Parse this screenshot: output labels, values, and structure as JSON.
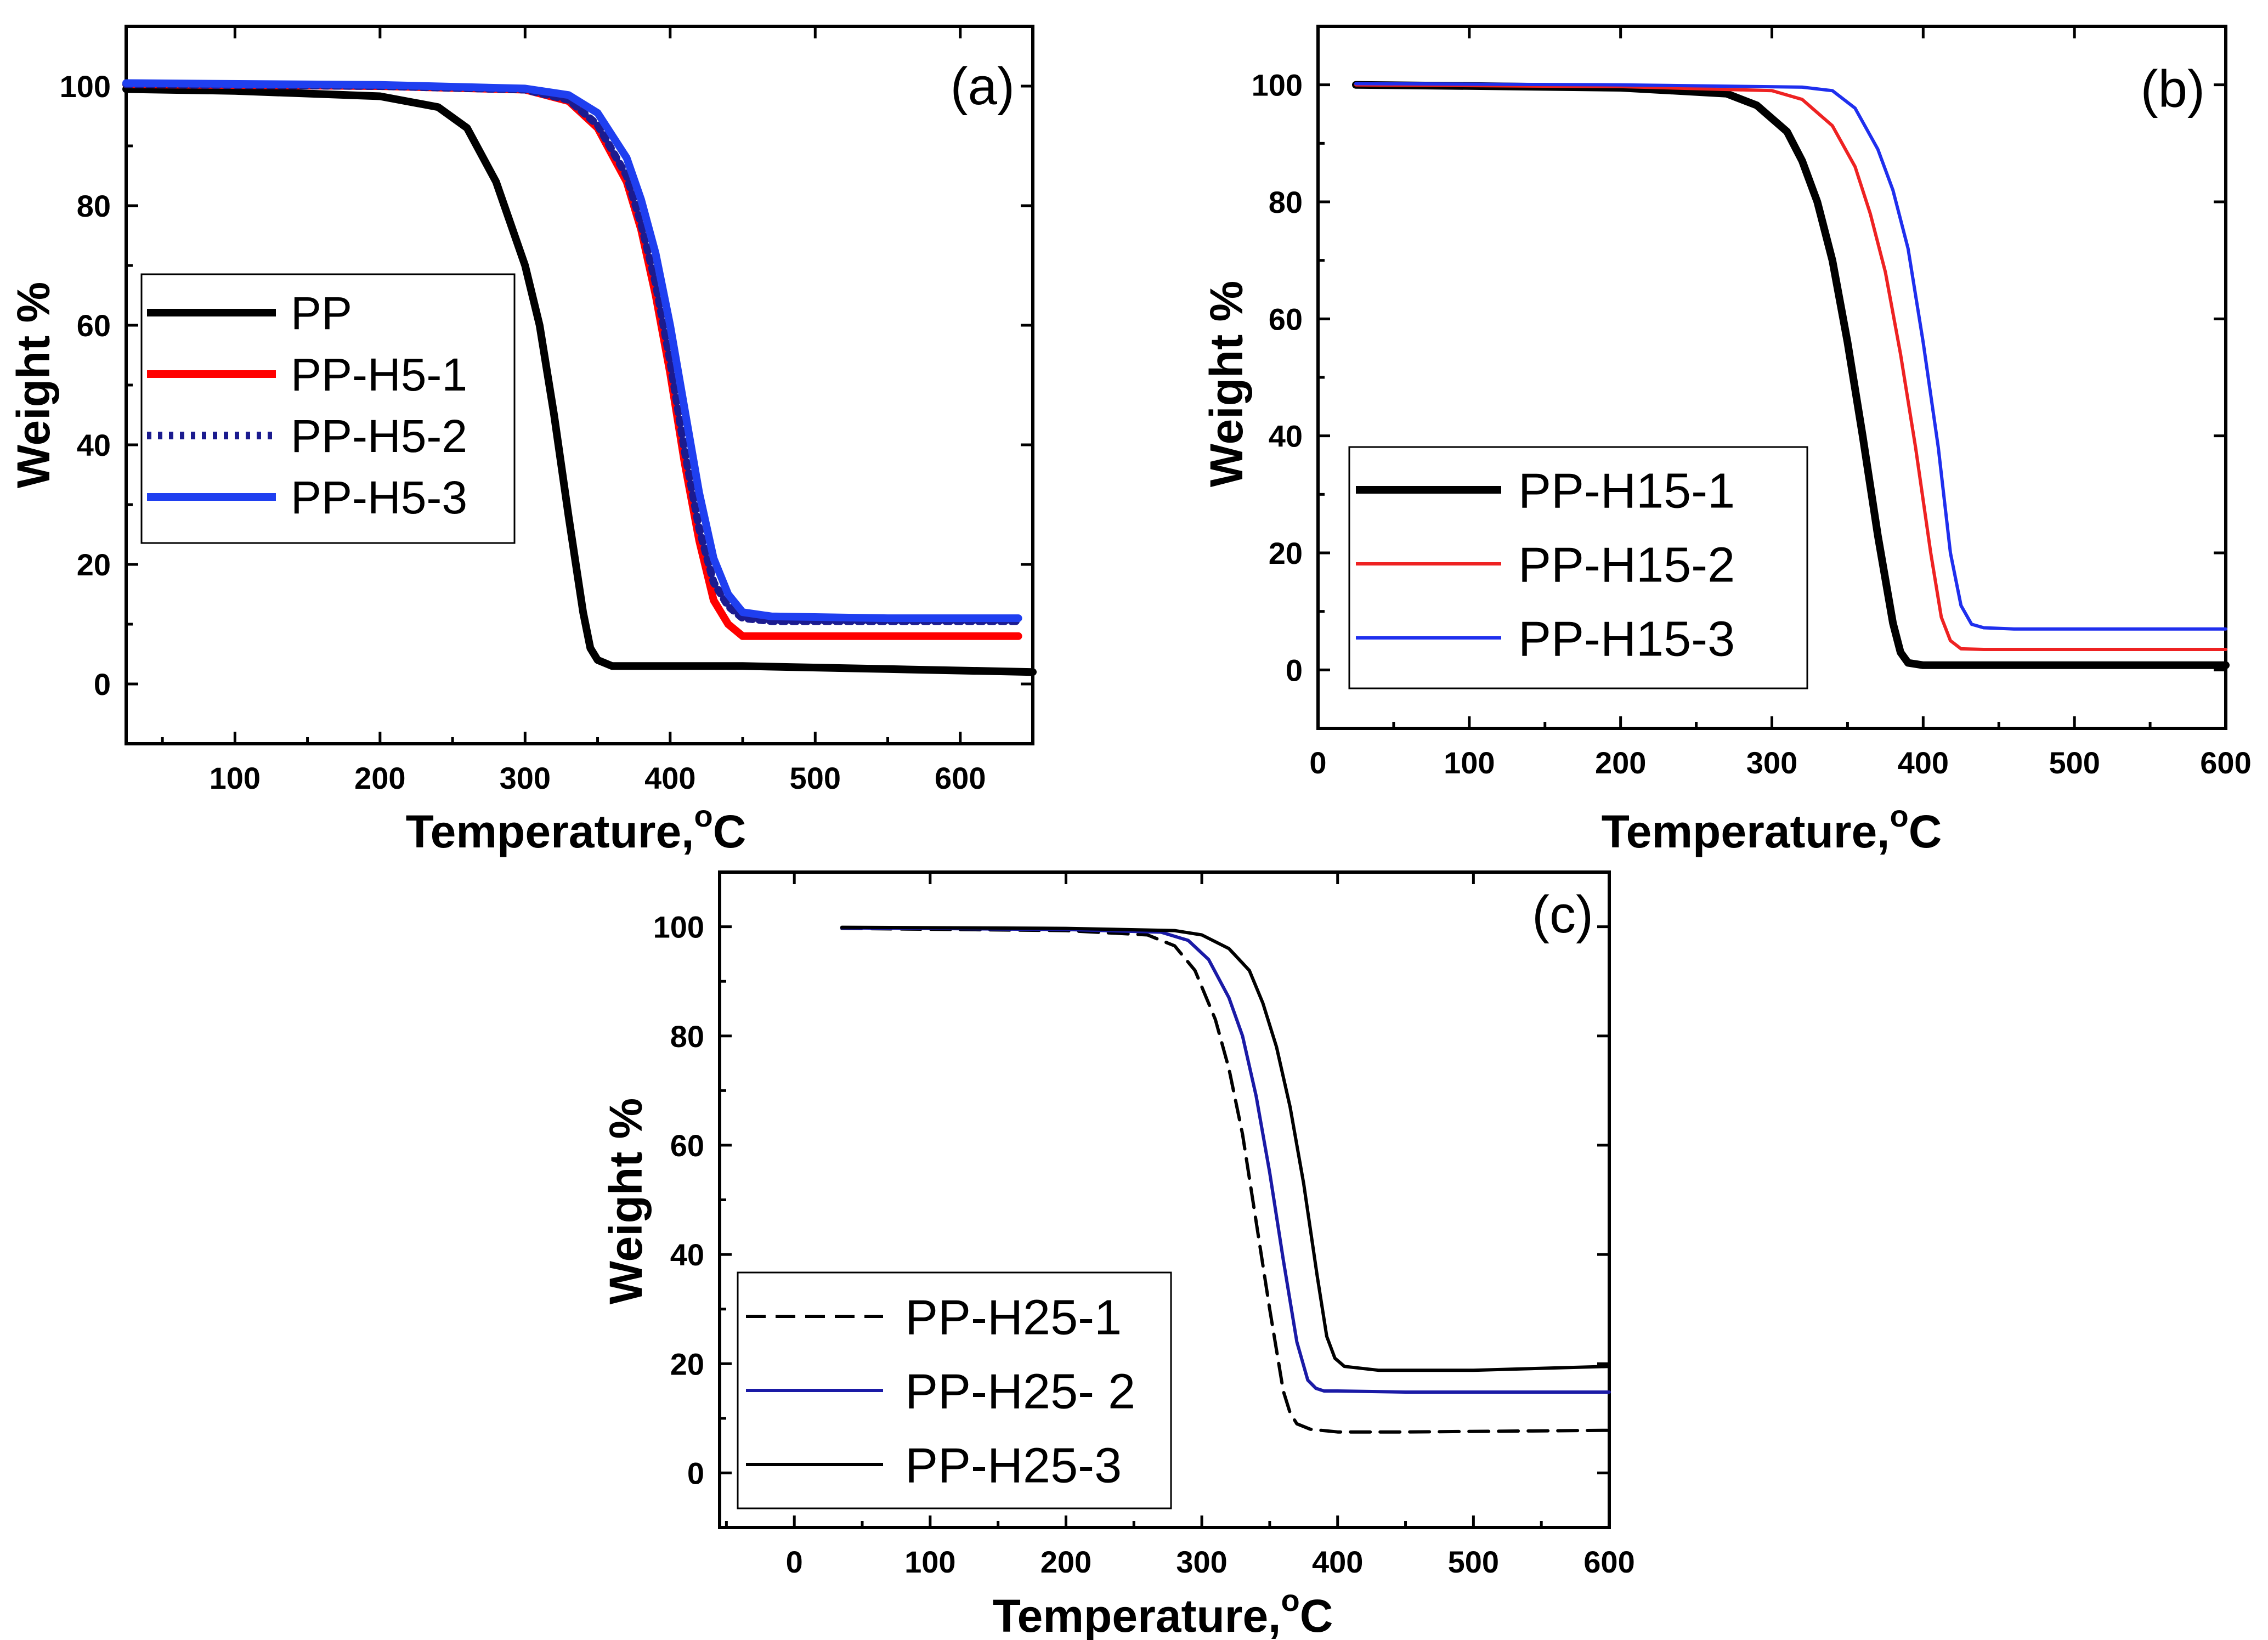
{
  "chart_data": [
    {
      "type": "line",
      "panel_label": "(a)",
      "xlabel": "Temperature,",
      "xlabel_sup": "o",
      "xlabel_unit": "C",
      "ylabel": "Weight %",
      "xlim": [
        25,
        650
      ],
      "ylim": [
        -10,
        110
      ],
      "xticks": [
        100,
        200,
        300,
        400,
        500,
        600
      ],
      "yticks": [
        0,
        20,
        40,
        60,
        80,
        100
      ],
      "legend": "left-middle",
      "series": [
        {
          "name": "PP",
          "color": "#000000",
          "style": "solid",
          "weight": "thick",
          "x": [
            25,
            100,
            200,
            240,
            260,
            280,
            300,
            310,
            320,
            330,
            340,
            345,
            350,
            360,
            380,
            450,
            550,
            650
          ],
          "y": [
            99.5,
            99.2,
            98.3,
            96.5,
            93,
            84,
            70,
            60,
            45,
            28,
            12,
            6,
            4,
            3,
            3,
            3,
            2.5,
            2
          ]
        },
        {
          "name": "PP-H5-1",
          "color": "#ff0000",
          "style": "solid",
          "weight": "thick",
          "x": [
            25,
            200,
            300,
            330,
            350,
            370,
            380,
            390,
            400,
            410,
            420,
            430,
            440,
            450,
            470,
            550,
            640
          ],
          "y": [
            100.3,
            100,
            99.4,
            97.5,
            93,
            84,
            76,
            65,
            52,
            37,
            24,
            14,
            10,
            8,
            8,
            8,
            8
          ]
        },
        {
          "name": "PP-H5-2",
          "color": "#1b1b8f",
          "style": "dotted",
          "weight": "thick",
          "x": [
            25,
            200,
            300,
            330,
            350,
            370,
            380,
            390,
            400,
            410,
            420,
            430,
            440,
            450,
            470,
            550,
            640
          ],
          "y": [
            100.3,
            100,
            99.4,
            97.7,
            93.5,
            85,
            77,
            67,
            54,
            39,
            26,
            17,
            13,
            11,
            10.5,
            10.5,
            10.5
          ]
        },
        {
          "name": "PP-H5-3",
          "color": "#1f3ff0",
          "style": "solid",
          "weight": "thick",
          "x": [
            25,
            200,
            300,
            330,
            350,
            370,
            380,
            390,
            400,
            410,
            420,
            430,
            440,
            450,
            470,
            550,
            640
          ],
          "y": [
            100.5,
            100.2,
            99.6,
            98.5,
            95.5,
            88,
            81,
            72,
            60,
            46,
            32,
            21,
            15,
            12,
            11.3,
            11,
            11
          ]
        }
      ]
    },
    {
      "type": "line",
      "panel_label": "(b)",
      "xlabel": "Temperature,",
      "xlabel_sup": "o",
      "xlabel_unit": "C",
      "ylabel": "Weight %",
      "xlim": [
        0,
        600
      ],
      "ylim": [
        -10,
        110
      ],
      "xticks": [
        0,
        100,
        200,
        300,
        400,
        500,
        600
      ],
      "yticks": [
        0,
        20,
        40,
        60,
        80,
        100
      ],
      "legend": "left-bottom",
      "series": [
        {
          "name": "PP-H15-1",
          "color": "#000000",
          "style": "solid",
          "weight": "thick",
          "x": [
            25,
            100,
            200,
            270,
            290,
            310,
            320,
            330,
            340,
            350,
            360,
            370,
            380,
            385,
            390,
            400,
            450,
            600
          ],
          "y": [
            100,
            99.8,
            99.5,
            98.5,
            96.5,
            92,
            87,
            80,
            70,
            56,
            40,
            23,
            8,
            3,
            1.2,
            0.8,
            0.8,
            0.8
          ]
        },
        {
          "name": "PP-H15-2",
          "color": "#ee2222",
          "style": "solid",
          "weight": "thin",
          "x": [
            25,
            200,
            300,
            320,
            340,
            355,
            365,
            375,
            385,
            395,
            405,
            412,
            418,
            425,
            440,
            600
          ],
          "y": [
            100,
            99.7,
            99,
            97.5,
            93,
            86,
            78,
            68,
            54,
            38,
            20,
            9,
            5,
            3.6,
            3.5,
            3.5
          ]
        },
        {
          "name": "PP-H15-3",
          "color": "#1f2fee",
          "style": "solid",
          "weight": "thin",
          "x": [
            25,
            200,
            320,
            340,
            355,
            370,
            380,
            390,
            400,
            410,
            418,
            425,
            432,
            440,
            460,
            600
          ],
          "y": [
            100.2,
            100,
            99.6,
            99,
            96,
            89,
            82,
            72,
            56,
            38,
            20,
            11,
            7.8,
            7.2,
            7,
            7
          ]
        }
      ]
    },
    {
      "type": "line",
      "panel_label": "(c)",
      "xlabel": "Temperature,",
      "xlabel_sup": "o",
      "xlabel_unit": "C",
      "ylabel": "Weight %",
      "xlim": [
        -55,
        600
      ],
      "ylim": [
        -10,
        110
      ],
      "xticks": [
        0,
        100,
        200,
        300,
        400,
        500,
        600
      ],
      "yticks": [
        0,
        20,
        40,
        60,
        80,
        100
      ],
      "legend": "left-bottom",
      "series": [
        {
          "name": "PP-H25-1",
          "color": "#000000",
          "style": "dashed",
          "weight": "thin",
          "x": [
            35,
            200,
            260,
            280,
            295,
            310,
            320,
            330,
            340,
            350,
            360,
            365,
            370,
            380,
            400,
            450,
            600
          ],
          "y": [
            99.7,
            99.3,
            98.5,
            96.5,
            92,
            83,
            74,
            62,
            46,
            30,
            15,
            11,
            9,
            8,
            7.5,
            7.5,
            7.8
          ]
        },
        {
          "name": "PP-H25- 2",
          "color": "#1a1aa6",
          "style": "solid",
          "weight": "thin",
          "x": [
            35,
            200,
            270,
            290,
            305,
            320,
            330,
            340,
            350,
            360,
            370,
            378,
            384,
            390,
            400,
            450,
            600
          ],
          "y": [
            99.8,
            99.5,
            99,
            97.5,
            94,
            87,
            80,
            69,
            55,
            39,
            24,
            17,
            15.5,
            15,
            15,
            14.8,
            14.8
          ]
        },
        {
          "name": "PP-H25-3",
          "color": "#000000",
          "style": "solid",
          "weight": "thin",
          "x": [
            35,
            200,
            280,
            300,
            320,
            335,
            345,
            355,
            365,
            375,
            385,
            392,
            398,
            405,
            430,
            500,
            600
          ],
          "y": [
            99.9,
            99.7,
            99.3,
            98.5,
            96,
            92,
            86,
            78,
            67,
            53,
            36,
            25,
            21,
            19.5,
            18.8,
            18.8,
            19.5
          ]
        }
      ]
    }
  ]
}
